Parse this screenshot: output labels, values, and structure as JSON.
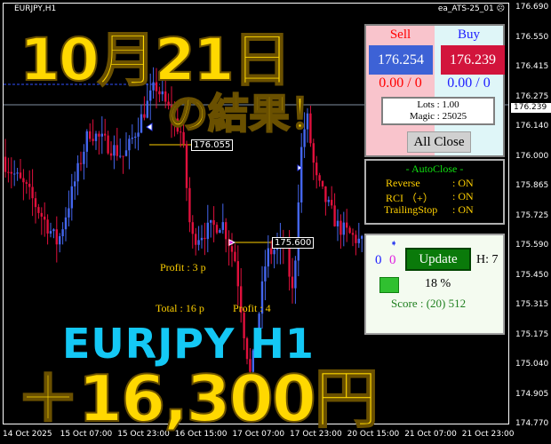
{
  "window": {
    "symbol": "EURJPY,H1",
    "ea_name": "ea_ATS-25_01",
    "ea_status_icon": "sad-face-icon"
  },
  "price_axis": [
    "176.690",
    "176.550",
    "176.415",
    "176.275",
    "176.140",
    "176.000",
    "175.865",
    "175.725",
    "175.590",
    "175.450",
    "175.315",
    "175.175",
    "175.040",
    "174.905",
    "174.770"
  ],
  "current_price": "176.239",
  "time_axis": [
    "14 Oct 2025",
    "15 Oct 07:00",
    "15 Oct 23:00",
    "16 Oct 15:00",
    "17 Oct 07:00",
    "17 Oct 23:00",
    "20 Oct 15:00",
    "21 Oct 07:00",
    "21 Oct 23:00"
  ],
  "price_path": [
    [
      0,
      176.0
    ],
    [
      30,
      175.85
    ],
    [
      65,
      175.6
    ],
    [
      100,
      176.12
    ],
    [
      140,
      176.0
    ],
    [
      175,
      176.33
    ],
    [
      205,
      176.1
    ],
    [
      215,
      175.62
    ],
    [
      250,
      175.7
    ],
    [
      265,
      175.52
    ],
    [
      275,
      175.18
    ],
    [
      282,
      174.98
    ],
    [
      300,
      175.55
    ],
    [
      320,
      175.6
    ],
    [
      330,
      175.35
    ],
    [
      338,
      176.0
    ],
    [
      345,
      176.2
    ],
    [
      355,
      175.9
    ],
    [
      380,
      175.68
    ],
    [
      408,
      175.6
    ]
  ],
  "chart_labels": {
    "price_tag_1": "176.055",
    "price_tag_2": "175.600",
    "profit_1": "Profit : 3 p",
    "total": "Total : 16 p",
    "profit_2": "Profit : 4"
  },
  "overlay": {
    "date": "10月21日",
    "result": "の結果！",
    "pair": "EURJPY H1",
    "amount": "＋16,300円"
  },
  "trade_panel": {
    "sell_label": "Sell",
    "buy_label": "Buy",
    "sell_price": "176.254",
    "buy_price": "176.239",
    "sell_pos": "0.00 / 0",
    "buy_pos": "0.00 / 0",
    "lots": "Lots   : 1.00",
    "magic": "Magic : 25025",
    "all_close": "All Close"
  },
  "autoclose": {
    "title": "- AutoClose -",
    "rows": [
      {
        "name": "Reverse",
        "value": ": ON"
      },
      {
        "name": "RCI （+）",
        "value": ": ON"
      },
      {
        "name": "TrailingStop",
        "value": ": ON"
      }
    ]
  },
  "score_panel": {
    "count_blue": "0",
    "count_magenta": "0",
    "update": "Update",
    "hours": "H: 7",
    "percent": "18 %",
    "score": "Score : (20) 512"
  },
  "colors": {
    "bull": "#4466ee",
    "bear": "#e0103c",
    "accent_yellow": "#ffd800",
    "cyan": "#14c8f5"
  }
}
